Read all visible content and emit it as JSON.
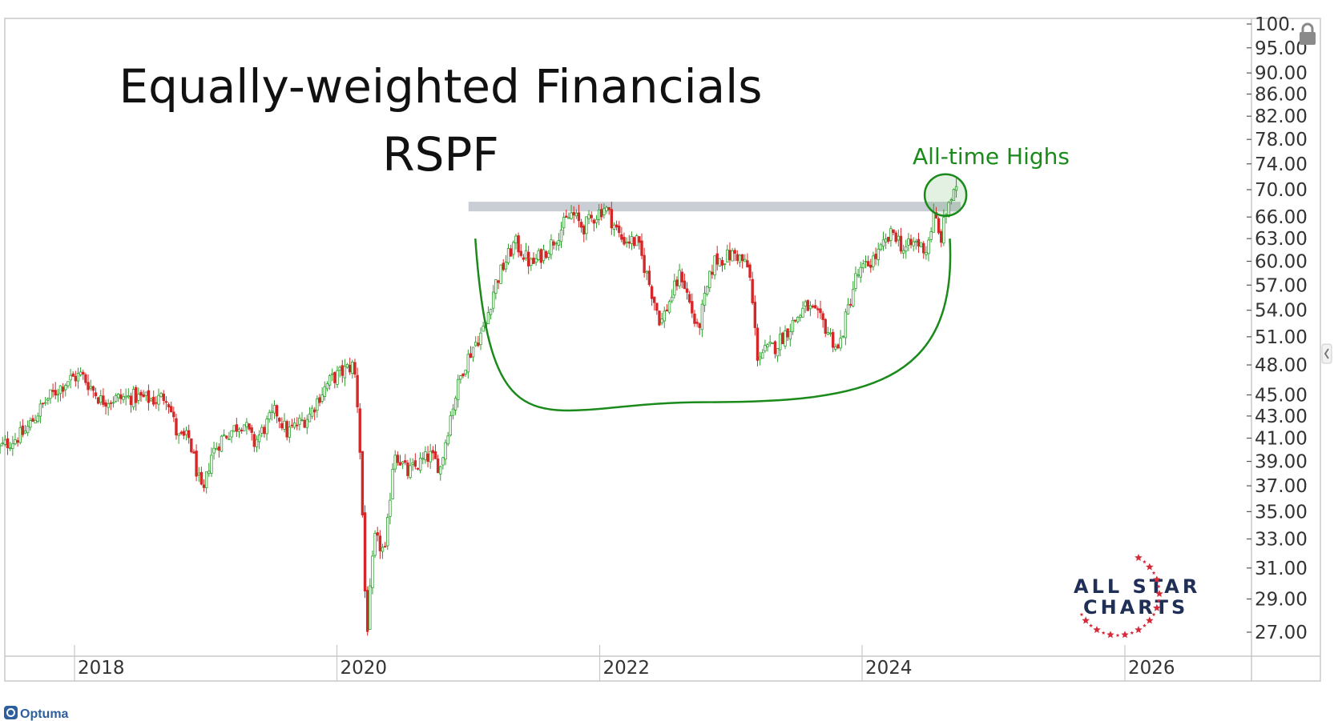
{
  "chart_data": {
    "type": "candlestick",
    "title": "Equally-weighted Financials",
    "subtitle": "RSPF",
    "annotation": "All-time Highs",
    "xlabel": "",
    "ylabel": "",
    "y_scale": "log",
    "ylim": [
      26,
      101
    ],
    "xlim": [
      "2017-06-01",
      "2026-09-01"
    ],
    "x_tick_labels": [
      "2018",
      "2020",
      "2022",
      "2024",
      "2026"
    ],
    "y_tick_labels": [
      "100.",
      "95.00",
      "90.00",
      "86.00",
      "82.00",
      "78.00",
      "74.00",
      "70.00",
      "66.00",
      "63.00",
      "60.00",
      "57.00",
      "54.00",
      "51.00",
      "48.00",
      "45.00",
      "43.00",
      "41.00",
      "39.00",
      "37.00",
      "35.00",
      "33.00",
      "31.00",
      "29.00",
      "27.00"
    ],
    "y_tick_values": [
      100,
      95,
      90,
      86,
      82,
      78,
      74,
      70,
      66,
      63,
      60,
      57,
      54,
      51,
      48,
      45,
      43,
      41,
      39,
      37,
      35,
      33,
      31,
      29,
      27
    ],
    "resistance_level": 67.5,
    "resistance_range": [
      "2021-01-01",
      "2024-10-01"
    ],
    "colors": {
      "up": "#2ca02c",
      "down": "#d62728",
      "annotation": "#1a8a1a",
      "resistance": "#c0c4cc",
      "axis": "#999999"
    },
    "weekly_close_path": [
      [
        "2017-06-01",
        40.0
      ],
      [
        "2017-08-15",
        41.5
      ],
      [
        "2017-10-15",
        44.5
      ],
      [
        "2017-12-15",
        46.5
      ],
      [
        "2018-01-20",
        47.0
      ],
      [
        "2018-03-15",
        44.5
      ],
      [
        "2018-06-15",
        44.8
      ],
      [
        "2018-08-15",
        44.5
      ],
      [
        "2018-09-15",
        45.0
      ],
      [
        "2018-10-15",
        41.0
      ],
      [
        "2018-11-15",
        41.0
      ],
      [
        "2018-12-24",
        36.0
      ],
      [
        "2019-01-15",
        39.5
      ],
      [
        "2019-02-15",
        41.0
      ],
      [
        "2019-04-15",
        42.5
      ],
      [
        "2019-05-15",
        40.5
      ],
      [
        "2019-07-15",
        43.5
      ],
      [
        "2019-08-15",
        41.5
      ],
      [
        "2019-10-15",
        43.0
      ],
      [
        "2019-11-15",
        45.0
      ],
      [
        "2019-12-15",
        46.5
      ],
      [
        "2020-02-15",
        48.0
      ],
      [
        "2020-02-24",
        46.0
      ],
      [
        "2020-03-05",
        40.0
      ],
      [
        "2020-03-23",
        26.5
      ],
      [
        "2020-04-15",
        33.0
      ],
      [
        "2020-05-15",
        32.0
      ],
      [
        "2020-06-08",
        40.0
      ],
      [
        "2020-07-15",
        38.0
      ],
      [
        "2020-09-15",
        39.5
      ],
      [
        "2020-10-15",
        38.5
      ],
      [
        "2020-11-15",
        43.5
      ],
      [
        "2020-12-15",
        47.5
      ],
      [
        "2021-01-15",
        50.0
      ],
      [
        "2021-02-15",
        52.0
      ],
      [
        "2021-03-15",
        57.0
      ],
      [
        "2021-05-10",
        62.5
      ],
      [
        "2021-06-25",
        59.5
      ],
      [
        "2021-08-15",
        62.0
      ],
      [
        "2021-10-15",
        66.5
      ],
      [
        "2021-11-15",
        64.5
      ],
      [
        "2022-01-15",
        67.5
      ],
      [
        "2022-03-01",
        63.0
      ],
      [
        "2022-04-15",
        62.5
      ],
      [
        "2022-05-20",
        57.0
      ],
      [
        "2022-06-20",
        52.5
      ],
      [
        "2022-08-15",
        58.5
      ],
      [
        "2022-09-30",
        51.5
      ],
      [
        "2022-11-15",
        60.0
      ],
      [
        "2023-01-15",
        61.0
      ],
      [
        "2023-02-20",
        59.0
      ],
      [
        "2023-03-15",
        49.0
      ],
      [
        "2023-05-05",
        50.0
      ],
      [
        "2023-07-30",
        54.5
      ],
      [
        "2023-09-15",
        52.5
      ],
      [
        "2023-10-27",
        49.5
      ],
      [
        "2023-12-15",
        58.0
      ],
      [
        "2024-02-15",
        61.0
      ],
      [
        "2024-03-30",
        64.0
      ],
      [
        "2024-04-25",
        61.5
      ],
      [
        "2024-05-30",
        62.5
      ],
      [
        "2024-06-28",
        61.5
      ],
      [
        "2024-07-20",
        66.5
      ],
      [
        "2024-08-05",
        62.5
      ],
      [
        "2024-08-30",
        68.5
      ],
      [
        "2024-09-20",
        69.5
      ]
    ]
  },
  "footer": {
    "brand": "Optuma"
  },
  "logo": {
    "line1": "ALL STAR",
    "line2": "CHARTS"
  }
}
